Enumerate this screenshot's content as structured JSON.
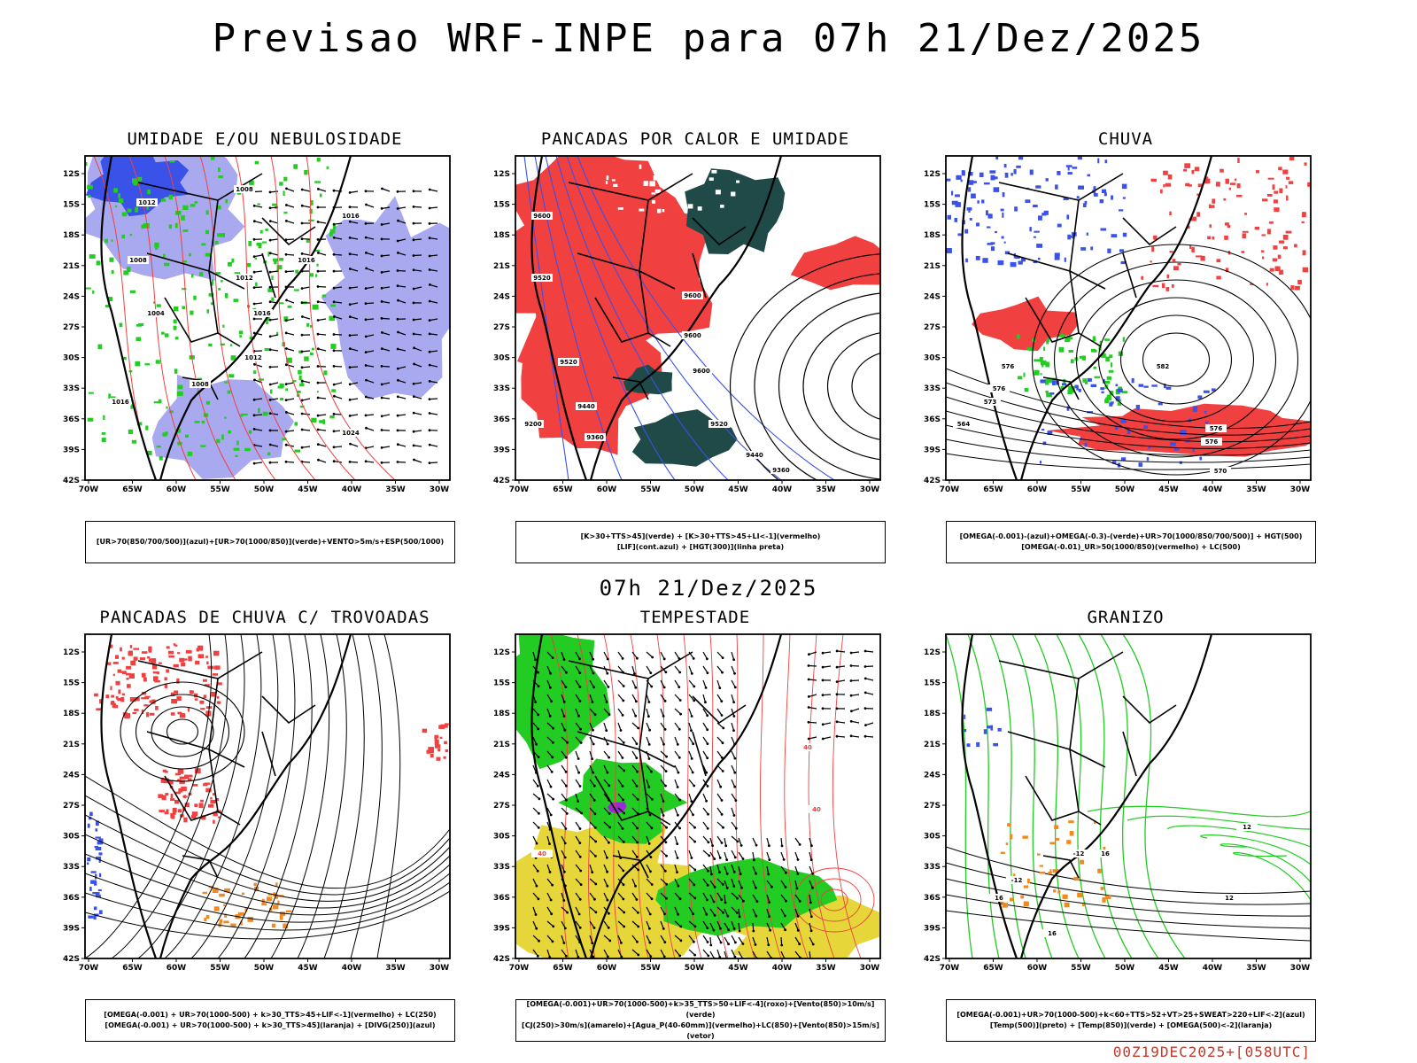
{
  "header": {
    "title": "Previsao WRF-INPE  para 07h 21/Dez/2025"
  },
  "mid_label": "07h 21/Dez/2025",
  "footer": "00Z19DEC2025+[058UTC]",
  "axes": {
    "lat_labels": [
      "12S",
      "15S",
      "18S",
      "21S",
      "24S",
      "27S",
      "30S",
      "33S",
      "36S",
      "39S",
      "42S"
    ],
    "lon_labels": [
      "70W",
      "65W",
      "60W",
      "55W",
      "50W",
      "45W",
      "40W",
      "35W",
      "30W"
    ]
  },
  "colors": {
    "red": "#f04040",
    "blue": "#3a52e8",
    "green": "#22cc22",
    "lightblue": "#a9a9f0",
    "yellow": "#e6d63a",
    "orange": "#f08a20",
    "darkteal": "#1f4a48",
    "purple": "#9a2ad6"
  },
  "panels": [
    {
      "id": "umidade",
      "title": "UMIDADE E/OU NEBULOSIDADE",
      "legend": [
        "[UR>70(850/700/500)](azul)+[UR>70(1000/850)](verde)+VENTO>5m/s+ESP(500/1000)"
      ],
      "contour_labels": [
        "1008",
        "1012",
        "1016",
        "1016",
        "1008",
        "1012",
        "1016",
        "1004",
        "1012",
        "1008",
        "1016",
        "1024"
      ]
    },
    {
      "id": "pancadas-calor",
      "title": "PANCADAS POR CALOR E UMIDADE",
      "legend": [
        "[K>30+TTS>45](verde) + [K>30+TTS>45+LI<-1](vermelho)",
        "[LIF](cont.azul) + [HGT(300)](linha preta)"
      ],
      "contour_labels": [
        "9600",
        "9520",
        "9600",
        "9600",
        "9520",
        "9600",
        "9440",
        "9520",
        "9360",
        "9440",
        "9360",
        "9200"
      ]
    },
    {
      "id": "chuva",
      "title": "CHUVA",
      "legend": [
        "[OMEGA(-0.001)-(azul)+OMEGA(-0.3)-(verde)+UR>70(1000/850/700/500)] + HGT(500)",
        "[OMEGA(-0.01)_UR>50(1000/850)(vermelho) + LC(500)"
      ],
      "contour_labels": [
        "576",
        "582",
        "576",
        "573",
        "570",
        "576",
        "576",
        "564"
      ]
    },
    {
      "id": "trovoadas",
      "title": "PANCADAS DE CHUVA C/ TROVOADAS",
      "legend": [
        "[OMEGA(-0.001) + UR>70(1000-500) + k>30_TTS>45+LIF<-1](vermelho) + LC(250)",
        "[OMEGA(-0.001) + UR>70(1000-500) + k>30_TTS>45](laranja) + [DIVG(250)](azul)"
      ],
      "contour_labels": []
    },
    {
      "id": "tempestade",
      "title": "TEMPESTADE",
      "legend": [
        "[OMEGA(-0.001)+UR>70(1000-500)+k>35_TTS>50+LIF<-4](roxo)+[Vento(850)>10m/s](verde)",
        "[CJ(250)>30m/s](amarelo)+[Agua_P(40-60mm)](vermelho)+LC(850)+[Vento(850)>15m/s](vetor)"
      ],
      "contour_labels": [
        "40",
        "40",
        "40"
      ]
    },
    {
      "id": "granizo",
      "title": "GRANIZO",
      "legend": [
        "[OMEGA(-0.001)+UR>70(1000-500)+k<60+TTS>52+VT>25+SWEAT>220+LIF<-2](azul)",
        "[Temp(500)](preto) + [Temp(850)](verde) + [OMEGA(500)<-2](laranja)"
      ],
      "contour_labels": [
        "-12",
        "16",
        "-12",
        "12",
        "16",
        "12",
        "16"
      ]
    }
  ]
}
